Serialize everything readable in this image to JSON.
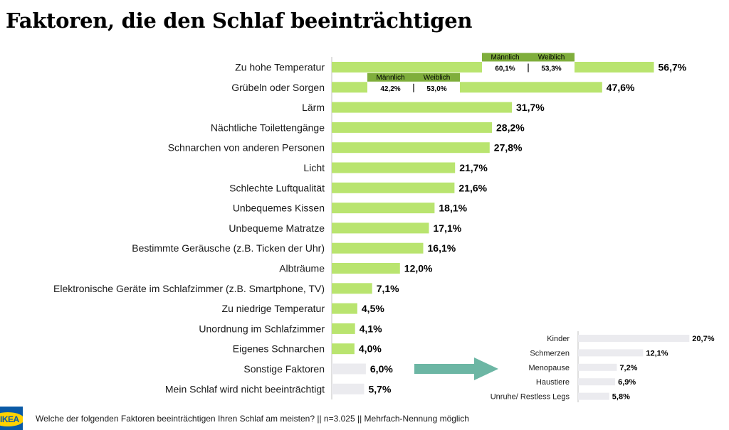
{
  "title": "Faktoren, die den Schlaf beeinträchtigen",
  "footnote": "Welche der folgenden Faktoren beeinträchtigen Ihren Schlaf am meisten? || n=3.025 || Mehrfach-Nennung möglich",
  "logo_text": "IKEA",
  "colors": {
    "main_bar": "#b9e46f",
    "other_bar": "#ebebef",
    "gender_header": "#7fae3c",
    "arrow": "#6cb6a4"
  },
  "chart_data": [
    {
      "type": "bar",
      "orientation": "horizontal",
      "categories": [
        "Zu hohe Temperatur",
        "Grübeln oder Sorgen",
        "Lärm",
        "Nächtliche Toilettengänge",
        "Schnarchen von anderen Personen",
        "Licht",
        "Schlechte Luftqualität",
        "Unbequemes Kissen",
        "Unbequeme Matratze",
        "Bestimmte Geräusche (z.B. Ticken der Uhr)",
        "Albträume",
        "Elektronische Geräte im Schlafzimmer (z.B. Smartphone, TV)",
        "Zu niedrige Temperatur",
        "Unordnung im Schlafzimmer",
        "Eigenes Schnarchen",
        "Sonstige Faktoren",
        "Mein Schlaf wird nicht beeinträchtigt"
      ],
      "values": [
        56.7,
        47.6,
        31.7,
        28.2,
        27.8,
        21.7,
        21.6,
        18.1,
        17.1,
        16.1,
        12.0,
        7.1,
        4.5,
        4.1,
        4.0,
        6.0,
        5.7
      ],
      "value_labels": [
        "56,7%",
        "47,6%",
        "31,7%",
        "28,2%",
        "27,8%",
        "21,7%",
        "21,6%",
        "18,1%",
        "17,1%",
        "16,1%",
        "12,0%",
        "7,1%",
        "4,5%",
        "4,1%",
        "4,0%",
        "6,0%",
        "5,7%"
      ],
      "highlight": [
        false,
        false,
        false,
        false,
        false,
        false,
        false,
        false,
        false,
        false,
        false,
        false,
        false,
        false,
        false,
        true,
        true
      ],
      "gender_breakdown": [
        {
          "category": "Zu hohe Temperatur",
          "labels": [
            "Männlich",
            "Weiblich"
          ],
          "values": [
            60.1,
            53.3
          ],
          "value_labels": [
            "60,1%",
            "53,3%"
          ]
        },
        {
          "category": "Grübeln oder Sorgen",
          "labels": [
            "Männlich",
            "Weiblich"
          ],
          "values": [
            42.2,
            53.0
          ],
          "value_labels": [
            "42,2%",
            "53,0%"
          ]
        }
      ]
    },
    {
      "type": "bar",
      "orientation": "horizontal",
      "parent_category": "Sonstige Faktoren",
      "categories": [
        "Kinder",
        "Schmerzen",
        "Menopause",
        "Haustiere",
        "Unruhe/ Restless Legs"
      ],
      "values": [
        20.7,
        12.1,
        7.2,
        6.9,
        5.8
      ],
      "value_labels": [
        "20,7%",
        "12,1%",
        "7,2%",
        "6,9%",
        "5,8%"
      ]
    }
  ]
}
